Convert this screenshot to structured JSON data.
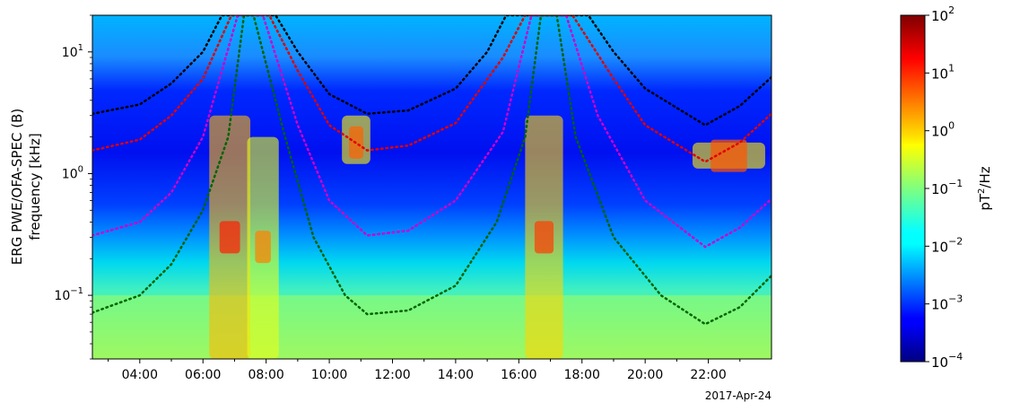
{
  "chart_data": {
    "type": "heatmap",
    "title": "",
    "ylabel_line1": "ERG PWE/OFA-SPEC (B)",
    "ylabel_line2": "frequency [kHz]",
    "date_label": "2017-Apr-24",
    "x_range_hours": [
      2.5,
      24.0
    ],
    "x_ticks": [
      {
        "hour": 4,
        "label": "04:00"
      },
      {
        "hour": 6,
        "label": "06:00"
      },
      {
        "hour": 8,
        "label": "08:00"
      },
      {
        "hour": 10,
        "label": "10:00"
      },
      {
        "hour": 12,
        "label": "12:00"
      },
      {
        "hour": 14,
        "label": "14:00"
      },
      {
        "hour": 16,
        "label": "16:00"
      },
      {
        "hour": 18,
        "label": "18:00"
      },
      {
        "hour": 20,
        "label": "20:00"
      },
      {
        "hour": 22,
        "label": "22:00"
      }
    ],
    "y_scale": "log",
    "y_range_khz": [
      0.03,
      20
    ],
    "y_ticks": [
      {
        "value": 0.1,
        "base": "10",
        "exp": "−1"
      },
      {
        "value": 1,
        "base": "10",
        "exp": "0"
      },
      {
        "value": 10,
        "base": "10",
        "exp": "1"
      }
    ],
    "colorbar": {
      "label_base": "pT",
      "label_exp": "2",
      "label_tail": "/Hz",
      "scale": "log",
      "range": [
        0.0001,
        100
      ],
      "colormap": "jet",
      "ticks": [
        {
          "value": 100,
          "base": "10",
          "exp": "2"
        },
        {
          "value": 10,
          "base": "10",
          "exp": "1"
        },
        {
          "value": 1,
          "base": "10",
          "exp": "0"
        },
        {
          "value": 0.1,
          "base": "10",
          "exp": "−1"
        },
        {
          "value": 0.01,
          "base": "10",
          "exp": "−2"
        },
        {
          "value": 0.001,
          "base": "10",
          "exp": "−3"
        },
        {
          "value": 0.0001,
          "base": "10",
          "exp": "−4"
        }
      ]
    },
    "overlay_curves": [
      {
        "color": "#000000",
        "style": "dotted",
        "points": [
          [
            2.5,
            3.1
          ],
          [
            4,
            3.7
          ],
          [
            5,
            5.5
          ],
          [
            6,
            10
          ],
          [
            6.6,
            20
          ],
          [
            8.3,
            20
          ],
          [
            9,
            10
          ],
          [
            10,
            4.5
          ],
          [
            11.2,
            3.1
          ],
          [
            12.5,
            3.3
          ],
          [
            14,
            5
          ],
          [
            15,
            10
          ],
          [
            15.6,
            20
          ],
          [
            18.2,
            20
          ],
          [
            19,
            10
          ],
          [
            20,
            5
          ],
          [
            21.9,
            2.5
          ],
          [
            23,
            3.6
          ],
          [
            24,
            6.2
          ]
        ]
      },
      {
        "color": "#e00000",
        "style": "dotted",
        "points": [
          [
            2.5,
            1.55
          ],
          [
            4,
            1.9
          ],
          [
            5,
            3
          ],
          [
            6,
            6
          ],
          [
            6.9,
            20
          ],
          [
            8.1,
            20
          ],
          [
            9,
            7
          ],
          [
            10,
            2.5
          ],
          [
            11.2,
            1.55
          ],
          [
            12.5,
            1.7
          ],
          [
            14,
            2.6
          ],
          [
            15.5,
            9
          ],
          [
            16.2,
            20
          ],
          [
            17.7,
            20
          ],
          [
            19,
            6
          ],
          [
            20,
            2.5
          ],
          [
            21.9,
            1.25
          ],
          [
            23,
            1.8
          ],
          [
            24,
            3.1
          ]
        ]
      },
      {
        "color": "#cc00cc",
        "style": "dotted",
        "points": [
          [
            2.5,
            0.31
          ],
          [
            4,
            0.4
          ],
          [
            5,
            0.7
          ],
          [
            6,
            2
          ],
          [
            7.1,
            20
          ],
          [
            7.9,
            20
          ],
          [
            9,
            2.5
          ],
          [
            10,
            0.6
          ],
          [
            11.2,
            0.31
          ],
          [
            12.5,
            0.34
          ],
          [
            14,
            0.6
          ],
          [
            15.5,
            2.2
          ],
          [
            16.4,
            20
          ],
          [
            17.5,
            20
          ],
          [
            18.5,
            3
          ],
          [
            20,
            0.6
          ],
          [
            21.9,
            0.25
          ],
          [
            23,
            0.36
          ],
          [
            24,
            0.62
          ]
        ]
      },
      {
        "color": "#006400",
        "style": "dotted",
        "points": [
          [
            2.5,
            0.072
          ],
          [
            4,
            0.1
          ],
          [
            5,
            0.18
          ],
          [
            6,
            0.5
          ],
          [
            6.8,
            2
          ],
          [
            7.3,
            20
          ],
          [
            7.6,
            20
          ],
          [
            8.6,
            2
          ],
          [
            9.5,
            0.3
          ],
          [
            10.5,
            0.1
          ],
          [
            11.2,
            0.07
          ],
          [
            12.5,
            0.075
          ],
          [
            14,
            0.12
          ],
          [
            15.3,
            0.4
          ],
          [
            16.2,
            2
          ],
          [
            16.7,
            20
          ],
          [
            17.2,
            20
          ],
          [
            17.8,
            2
          ],
          [
            19,
            0.3
          ],
          [
            20.5,
            0.1
          ],
          [
            21.9,
            0.058
          ],
          [
            23,
            0.08
          ],
          [
            24,
            0.145
          ]
        ]
      }
    ],
    "intensity_features": [
      {
        "t0": 6.2,
        "t1": 7.5,
        "f0": 0.03,
        "f1": 3,
        "level": 1.5,
        "peak_khz": 0.3
      },
      {
        "t0": 7.4,
        "t1": 8.4,
        "f0": 0.03,
        "f1": 2,
        "level": 0.4,
        "peak_khz": 0.25
      },
      {
        "t0": 16.2,
        "t1": 17.4,
        "f0": 0.03,
        "f1": 3,
        "level": 1.0,
        "peak_khz": 0.3
      },
      {
        "t0": 10.4,
        "t1": 11.3,
        "f0": 1.2,
        "f1": 3,
        "level": 0.6,
        "peak_khz": 1.8
      },
      {
        "t0": 21.5,
        "t1": 23.8,
        "f0": 1.1,
        "f1": 1.8,
        "level": 0.7,
        "peak_khz": 1.4
      }
    ]
  }
}
